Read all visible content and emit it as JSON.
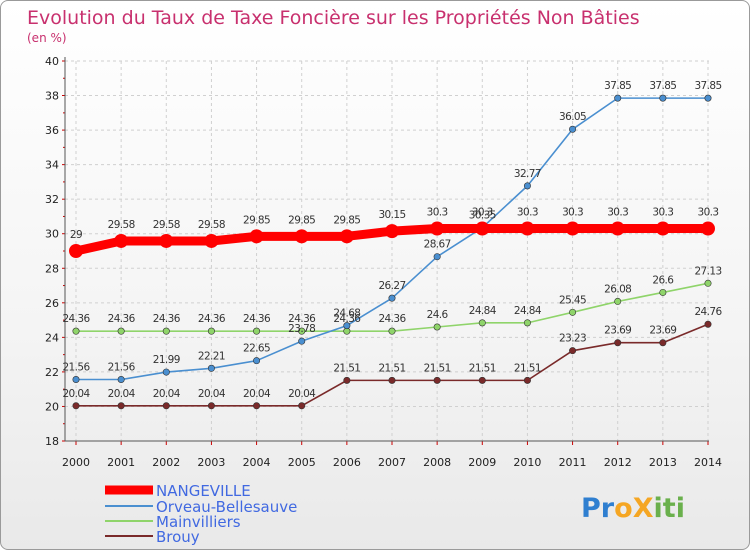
{
  "chart_data": {
    "type": "line",
    "title": "Evolution du Taux de Taxe Foncière sur les Propriétés Non Bâties",
    "subtitle": "(en %)",
    "xlabel": "",
    "ylabel": "",
    "x": [
      "2000",
      "2001",
      "2002",
      "2003",
      "2004",
      "2005",
      "2006",
      "2007",
      "2008",
      "2009",
      "2010",
      "2011",
      "2012",
      "2013",
      "2014"
    ],
    "ylim": [
      18,
      40
    ],
    "yticks": [
      "18",
      "20",
      "22",
      "24",
      "26",
      "28",
      "30",
      "32",
      "34",
      "36",
      "38",
      "40"
    ],
    "grid": true,
    "legend_position": "bottom-left",
    "series": [
      {
        "name": "NANGEVILLE",
        "color": "#ff0000",
        "values": [
          29,
          29.58,
          29.58,
          29.58,
          29.85,
          29.85,
          29.85,
          30.15,
          30.3,
          30.3,
          30.3,
          30.3,
          30.3,
          30.3,
          30.3
        ],
        "labels": [
          "29",
          "29.58",
          "29.58",
          "29.58",
          "29.85",
          "29.85",
          "29.85",
          "30.15",
          "30.3",
          "30.3",
          "30.3",
          "30.3",
          "30.3",
          "30.3",
          "30.3"
        ]
      },
      {
        "name": "Orveau-Bellesauve",
        "color": "#4a8fd0",
        "values": [
          21.56,
          21.56,
          21.99,
          22.21,
          22.65,
          23.78,
          24.68,
          26.27,
          28.67,
          30.35,
          32.77,
          36.05,
          37.85,
          37.85,
          37.85
        ],
        "labels": [
          "21.56",
          "21.56",
          "21.99",
          "22.21",
          "22.65",
          "23.78",
          "24.68",
          "26.27",
          "28.67",
          "30.35",
          "32.77",
          "36.05",
          "37.85",
          "37.85",
          "37.85"
        ]
      },
      {
        "name": "Mainvilliers",
        "color": "#8fd46a",
        "values": [
          24.36,
          24.36,
          24.36,
          24.36,
          24.36,
          24.36,
          24.36,
          24.36,
          24.6,
          24.84,
          24.84,
          25.45,
          26.08,
          26.6,
          27.13
        ],
        "labels": [
          "24.36",
          "24.36",
          "24.36",
          "24.36",
          "24.36",
          "24.36",
          "24.36",
          "24.36",
          "24.6",
          "24.84",
          "24.84",
          "25.45",
          "26.08",
          "26.6",
          "27.13"
        ]
      },
      {
        "name": "Brouy",
        "color": "#7a2a2a",
        "values": [
          20.04,
          20.04,
          20.04,
          20.04,
          20.04,
          20.04,
          21.51,
          21.51,
          21.51,
          21.51,
          21.51,
          23.23,
          23.69,
          23.69,
          24.76
        ],
        "labels": [
          "20.04",
          "20.04",
          "20.04",
          "20.04",
          "20.04",
          "20.04",
          "21.51",
          "21.51",
          "21.51",
          "21.51",
          "21.51",
          "23.23",
          "23.69",
          "23.69",
          "24.76"
        ]
      }
    ]
  },
  "logo": {
    "text": "ProXiti",
    "letters": [
      "P",
      "r",
      "o",
      "X",
      "i",
      "t",
      "i"
    ],
    "colors": [
      "#2f7fd0",
      "#2f7fd0",
      "#f5a623",
      "#f5a623",
      "#6ab04c",
      "#6ab04c",
      "#6ab04c"
    ]
  }
}
